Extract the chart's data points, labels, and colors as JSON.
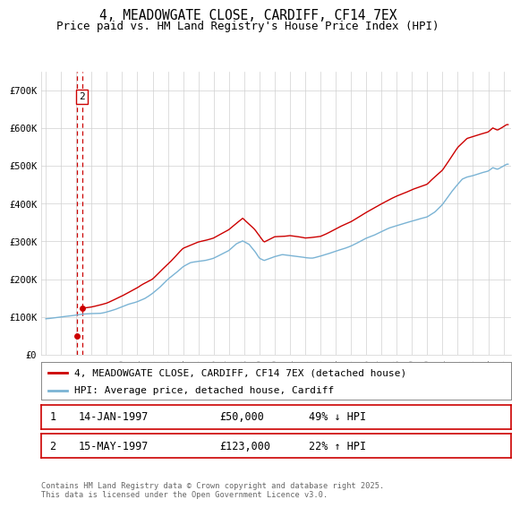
{
  "title": "4, MEADOWGATE CLOSE, CARDIFF, CF14 7EX",
  "subtitle": "Price paid vs. HM Land Registry's House Price Index (HPI)",
  "ylim": [
    0,
    750000
  ],
  "yticks": [
    0,
    100000,
    200000,
    300000,
    400000,
    500000,
    600000,
    700000
  ],
  "ytick_labels": [
    "£0",
    "£100K",
    "£200K",
    "£300K",
    "£400K",
    "£500K",
    "£600K",
    "£700K"
  ],
  "xlim_start": 1994.7,
  "xlim_end": 2025.5,
  "xtick_years": [
    1995,
    1996,
    1997,
    1998,
    1999,
    2000,
    2001,
    2002,
    2003,
    2004,
    2005,
    2006,
    2007,
    2008,
    2009,
    2010,
    2011,
    2012,
    2013,
    2014,
    2015,
    2016,
    2017,
    2018,
    2019,
    2020,
    2021,
    2022,
    2023,
    2024,
    2025
  ],
  "hpi_color": "#7ab3d4",
  "property_color": "#cc0000",
  "grid_color": "#d0d0d0",
  "background_color": "#ffffff",
  "legend_label_property": "4, MEADOWGATE CLOSE, CARDIFF, CF14 7EX (detached house)",
  "legend_label_hpi": "HPI: Average price, detached house, Cardiff",
  "sale1_date": 1997.04,
  "sale1_price": 50000,
  "sale2_date": 1997.37,
  "sale2_price": 123000,
  "footnote": "Contains HM Land Registry data © Crown copyright and database right 2025.\nThis data is licensed under the Open Government Licence v3.0.",
  "title_fontsize": 10.5,
  "subtitle_fontsize": 9,
  "tick_fontsize": 7.5,
  "legend_fontsize": 8,
  "annotation_fontsize": 8
}
